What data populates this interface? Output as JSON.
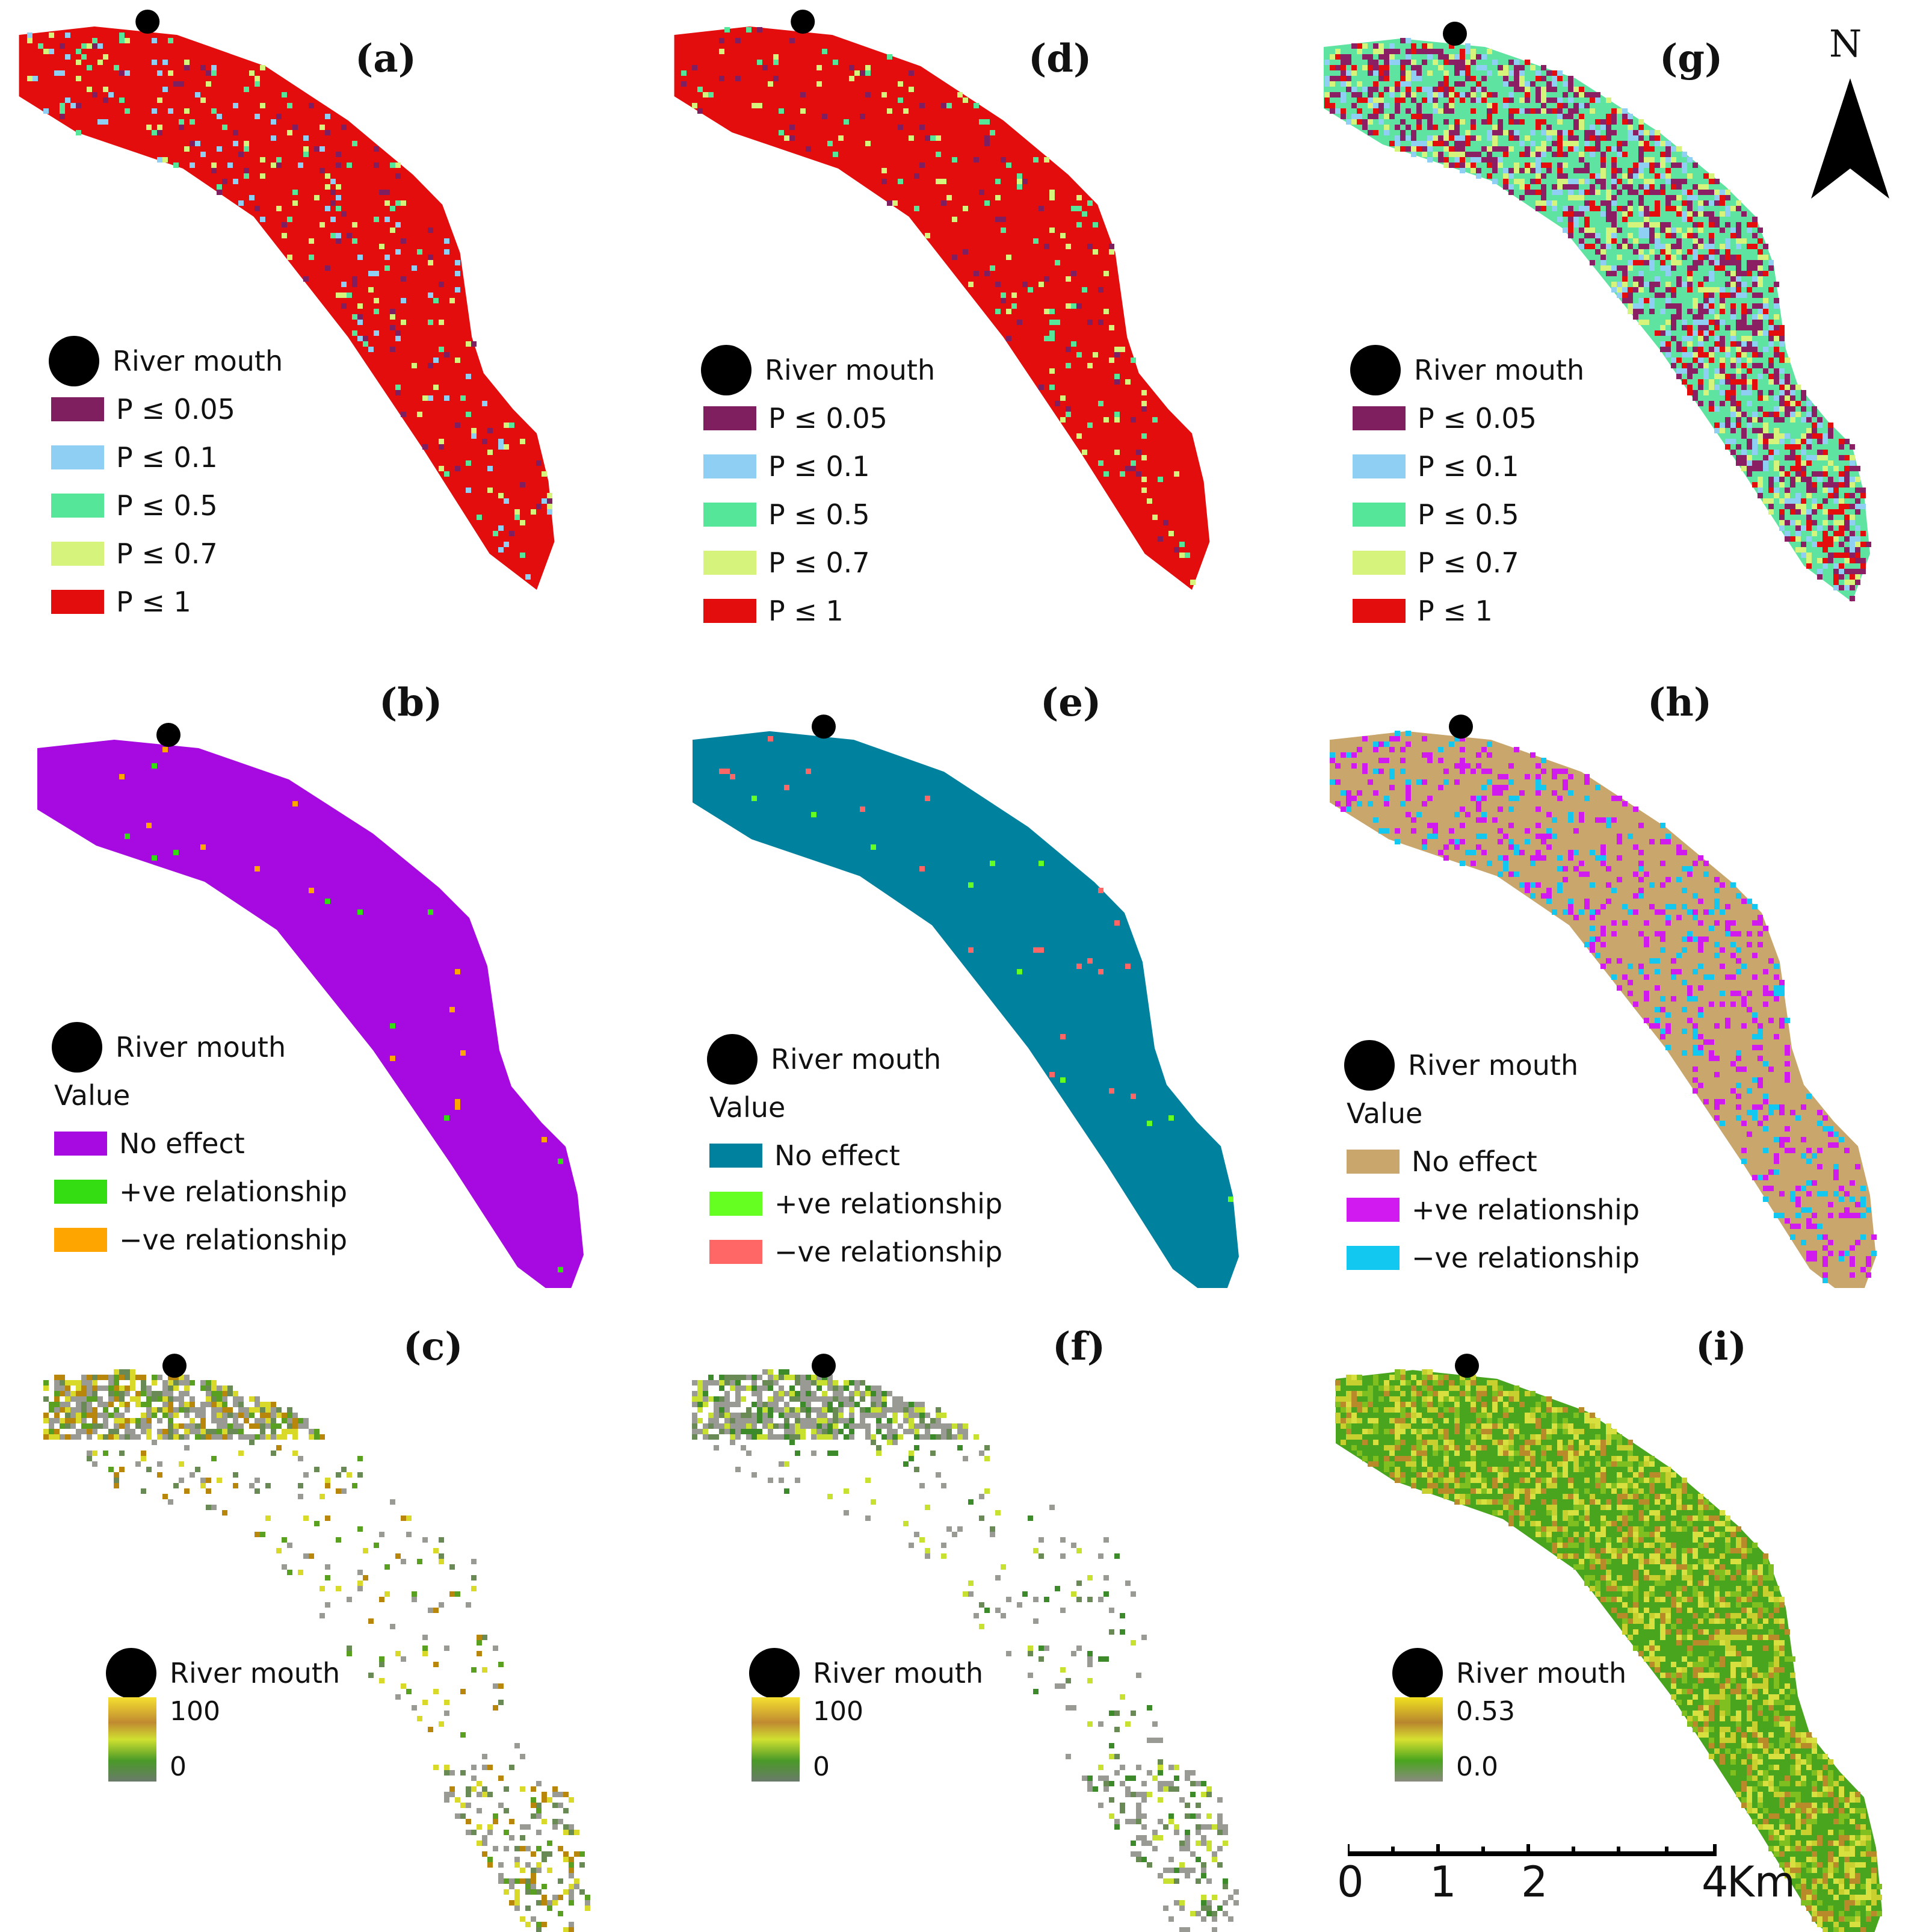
{
  "panels": [
    {
      "id": "a",
      "label": "(a)",
      "type": "p",
      "mouth_label": "River mouth",
      "fill": "#e40d0d",
      "pal": [
        "#7f1f5f",
        "#8ecff3",
        "#55e69a",
        "#d6f37c"
      ],
      "dens": 0.1
    },
    {
      "id": "d",
      "label": "(d)",
      "type": "p",
      "mouth_label": "River mouth",
      "fill": "#e40d0d",
      "pal": [
        "#55e69a",
        "#d6f37c",
        "#7f1f5f"
      ],
      "dens": 0.07
    },
    {
      "id": "g",
      "label": "(g)",
      "type": "p",
      "mouth_label": "River mouth",
      "fill": "#5ee3a0",
      "pal": [
        "#8a1f63",
        "#8a1f63",
        "#e40d0d",
        "#d6f37c",
        "#8ecff3"
      ],
      "dens": 0.55
    },
    {
      "id": "b",
      "label": "(b)",
      "type": "v",
      "mouth_label": "River mouth",
      "fill": "#a60ae0",
      "pal": [
        "#ffa500",
        "#33dd11"
      ],
      "dens": 0.01
    },
    {
      "id": "e",
      "label": "(e)",
      "type": "v",
      "mouth_label": "River mouth",
      "fill": "#00829f",
      "pal": [
        "#ff6666",
        "#66ff22"
      ],
      "dens": 0.01
    },
    {
      "id": "h",
      "label": "(h)",
      "type": "v",
      "mouth_label": "River mouth",
      "fill": "#c8a66c",
      "pal": [
        "#d11af0",
        "#d11af0",
        "#12c8f0"
      ],
      "dens": 0.22
    },
    {
      "id": "c",
      "label": "(c)",
      "type": "r",
      "mouth_label": "River mouth",
      "fill": "none",
      "pal": [
        "#9a9a95",
        "#9a9a95",
        "#6a8a55",
        "#b8860b",
        "#5aa020",
        "#d9d92a"
      ],
      "dens": 0.14
    },
    {
      "id": "f",
      "label": "(f)",
      "type": "r",
      "mouth_label": "River mouth",
      "fill": "none",
      "pal": [
        "#9a9a95",
        "#9a9a95",
        "#9a9a95",
        "#6a8a55",
        "#3d8a2a",
        "#c8e030"
      ],
      "dens": 0.13
    },
    {
      "id": "i",
      "label": "(i)",
      "type": "r2",
      "mouth_label": "River mouth",
      "fill": "#4aa51e",
      "pal": [
        "#c8d030",
        "#b88a2a",
        "#7fc020",
        "#d8e040"
      ],
      "dens": 0.5
    }
  ],
  "legend_p": {
    "items": [
      {
        "label": "P ≤ 0.05",
        "color": "#7f1f5f"
      },
      {
        "label": "P ≤ 0.1",
        "color": "#8ecff3"
      },
      {
        "label": "P ≤ 0.5",
        "color": "#55e69a"
      },
      {
        "label": "P ≤ 0.7",
        "color": "#d6f37c"
      },
      {
        "label": "P ≤ 1",
        "color": "#e40d0d"
      }
    ]
  },
  "legend_v": {
    "heading": "Value",
    "b": [
      {
        "label": "No effect",
        "color": "#a60ae0"
      },
      {
        "label": "+ve relationship",
        "color": "#33dd11"
      },
      {
        "label": "−ve relationship",
        "color": "#ffa500"
      }
    ],
    "e": [
      {
        "label": "No effect",
        "color": "#00829f"
      },
      {
        "label": "+ve relationship",
        "color": "#66ff22"
      },
      {
        "label": "−ve relationship",
        "color": "#ff6666"
      }
    ],
    "h": [
      {
        "label": "No effect",
        "color": "#c8a66c"
      },
      {
        "label": "+ve relationship",
        "color": "#d11af0"
      },
      {
        "label": "−ve relationship",
        "color": "#12c8f0"
      }
    ]
  },
  "legend_r": {
    "c": {
      "high": "100",
      "low": "0"
    },
    "f": {
      "high": "100",
      "low": "0"
    },
    "i": {
      "high": "0.53",
      "low": "0.0"
    }
  },
  "north": {
    "letter": "N"
  },
  "scale": {
    "ticks": [
      "0",
      "1",
      "2",
      "4"
    ],
    "unit": "Km"
  }
}
